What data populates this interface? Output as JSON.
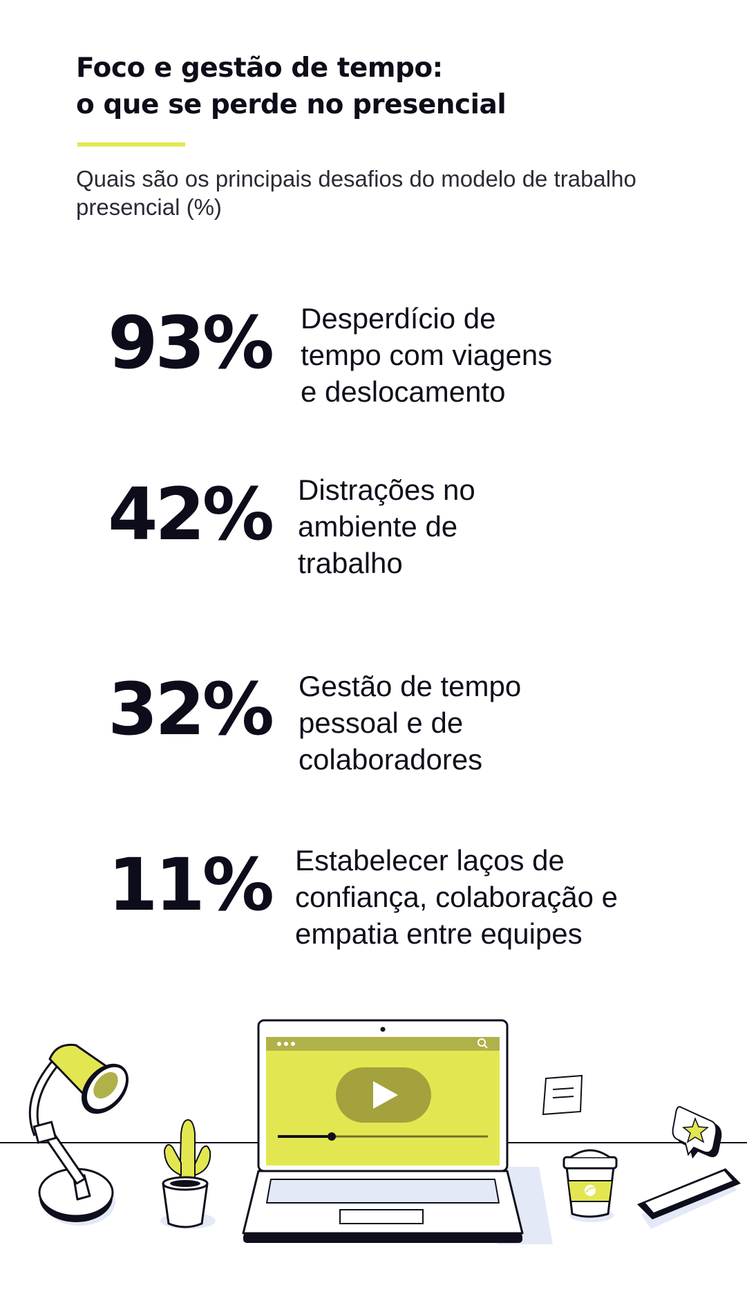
{
  "header": {
    "title_line1": "Foco e gestão de tempo:",
    "title_line2": "o que se perde no presencial",
    "subtitle": "Quais são os principais desafios do modelo de trabalho presencial (%)"
  },
  "stats": [
    {
      "value": "93%",
      "label_line1": "Desperdício de",
      "label_line2": "tempo com viagens",
      "label_line3": "e deslocamento"
    },
    {
      "value": "42%",
      "label_line1": "Distrações no",
      "label_line2": "ambiente de",
      "label_line3": "trabalho"
    },
    {
      "value": "32%",
      "label_line1": "Gestão de tempo",
      "label_line2": "pessoal e de",
      "label_line3": "colaboradores"
    },
    {
      "value": "11%",
      "label_line1": "Estabelecer laços de",
      "label_line2": "confiança, colaboração e",
      "label_line3": "empatia entre equipes"
    }
  ],
  "colors": {
    "accent": "#e2e751",
    "ink": "#0e0e1c",
    "shadow": "#e3e9f6",
    "screen_bar": "#b1b14a",
    "play_button": "#a3a23c"
  },
  "illustration": {
    "icons": [
      "desk-lamp-icon",
      "potted-plant-icon",
      "laptop-icon",
      "video-player-icon",
      "play-icon",
      "search-icon",
      "sticky-note-icon",
      "coffee-cup-icon",
      "star-chat-bubble-icon",
      "smartphone-icon"
    ]
  }
}
